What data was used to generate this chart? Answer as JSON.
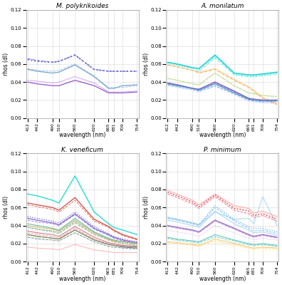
{
  "wavelengths": [
    412,
    442,
    490,
    510,
    560,
    620,
    665,
    681,
    709,
    754
  ],
  "titles": [
    "M. polykrikoides",
    "A. monilatum",
    "K. veneficum",
    "P. minimum"
  ],
  "ylabel": "rhos (dl)",
  "xlabel": "wavelength (nm)",
  "ylim": [
    0,
    0.12
  ],
  "yticks": [
    0.0,
    0.02,
    0.04,
    0.06,
    0.08,
    0.1,
    0.12
  ],
  "bg_color": "#ffffff",
  "grid_color": "#cccccc",
  "panels": {
    "M. polykrikoides": {
      "lines": [
        {
          "y": [
            0.04,
            0.038,
            0.036,
            0.036,
            0.042,
            0.036,
            0.028,
            0.028,
            0.028,
            0.029
          ],
          "color": "#8844bb",
          "ls": "solid",
          "lw": 0.9
        },
        {
          "y": [
            0.042,
            0.041,
            0.039,
            0.04,
            0.046,
            0.039,
            0.029,
            0.029,
            0.029,
            0.03
          ],
          "color": "#cc99ff",
          "ls": "solid",
          "lw": 0.7
        },
        {
          "y": [
            0.054,
            0.052,
            0.05,
            0.051,
            0.059,
            0.046,
            0.033,
            0.033,
            0.036,
            0.037
          ],
          "color": "#6699cc",
          "ls": "solid",
          "lw": 0.9
        },
        {
          "y": [
            0.055,
            0.053,
            0.052,
            0.053,
            0.06,
            0.047,
            0.034,
            0.034,
            0.034,
            0.036
          ],
          "color": "#99bbdd",
          "ls": "dashed",
          "lw": 0.7
        },
        {
          "y": [
            0.065,
            0.063,
            0.062,
            0.063,
            0.07,
            0.054,
            0.052,
            0.052,
            0.052,
            0.052
          ],
          "color": "#4444bb",
          "ls": "dotted",
          "lw": 1.3
        },
        {
          "y": [
            0.066,
            0.064,
            0.062,
            0.063,
            0.07,
            0.054,
            0.052,
            0.052,
            0.052,
            0.052
          ],
          "color": "#7777dd",
          "ls": "dashed",
          "lw": 0.9
        }
      ]
    },
    "A. monilatum": {
      "lines": [
        {
          "y": [
            0.062,
            0.06,
            0.056,
            0.055,
            0.07,
            0.05,
            0.048,
            0.048,
            0.049,
            0.051
          ],
          "color": "#00cccc",
          "ls": "solid",
          "lw": 1.1
        },
        {
          "y": [
            0.061,
            0.059,
            0.055,
            0.054,
            0.069,
            0.049,
            0.047,
            0.047,
            0.048,
            0.05
          ],
          "color": "#33dddd",
          "ls": "dotted",
          "lw": 1.1
        },
        {
          "y": [
            0.059,
            0.057,
            0.053,
            0.052,
            0.067,
            0.048,
            0.046,
            0.046,
            0.047,
            0.049
          ],
          "color": "#66eedd",
          "ls": "dashed",
          "lw": 0.9
        },
        {
          "y": [
            0.059,
            0.057,
            0.053,
            0.05,
            0.054,
            0.042,
            0.034,
            0.03,
            0.022,
            0.015
          ],
          "color": "#ffaa55",
          "ls": "dashed",
          "lw": 0.9
        },
        {
          "y": [
            0.059,
            0.057,
            0.053,
            0.051,
            0.055,
            0.043,
            0.035,
            0.031,
            0.023,
            0.016
          ],
          "color": "#ffcc88",
          "ls": "solid",
          "lw": 0.7
        },
        {
          "y": [
            0.044,
            0.042,
            0.038,
            0.037,
            0.05,
            0.036,
            0.028,
            0.027,
            0.025,
            0.024
          ],
          "color": "#99cc55",
          "ls": "dotted",
          "lw": 0.9
        },
        {
          "y": [
            0.044,
            0.042,
            0.038,
            0.037,
            0.05,
            0.036,
            0.028,
            0.027,
            0.025,
            0.024
          ],
          "color": "#bbdd77",
          "ls": "dashed",
          "lw": 0.7
        },
        {
          "y": [
            0.039,
            0.037,
            0.033,
            0.032,
            0.04,
            0.03,
            0.022,
            0.021,
            0.02,
            0.02
          ],
          "color": "#6655aa",
          "ls": "solid",
          "lw": 1.1
        },
        {
          "y": [
            0.039,
            0.037,
            0.033,
            0.032,
            0.039,
            0.029,
            0.022,
            0.021,
            0.02,
            0.02
          ],
          "color": "#8877cc",
          "ls": "dashed",
          "lw": 0.7
        },
        {
          "y": [
            0.038,
            0.036,
            0.033,
            0.031,
            0.038,
            0.028,
            0.021,
            0.02,
            0.019,
            0.019
          ],
          "color": "#4488cc",
          "ls": "solid",
          "lw": 0.9
        },
        {
          "y": [
            0.037,
            0.035,
            0.032,
            0.03,
            0.036,
            0.027,
            0.02,
            0.019,
            0.018,
            0.018
          ],
          "color": "#6699dd",
          "ls": "dashed",
          "lw": 0.7
        },
        {
          "y": [
            0.036,
            0.034,
            0.031,
            0.029,
            0.035,
            0.026,
            0.019,
            0.018,
            0.017,
            0.016
          ],
          "color": "#88aaee",
          "ls": "dotted",
          "lw": 0.7
        }
      ]
    },
    "K. veneficum": {
      "lines": [
        {
          "y": [
            0.075,
            0.073,
            0.068,
            0.065,
            0.095,
            0.055,
            0.042,
            0.038,
            0.035,
            0.03
          ],
          "color": "#22ddcc",
          "ls": "solid",
          "lw": 1.1
        },
        {
          "y": [
            0.065,
            0.063,
            0.06,
            0.057,
            0.071,
            0.047,
            0.039,
            0.035,
            0.03,
            0.025
          ],
          "color": "#cc3333",
          "ls": "solid",
          "lw": 0.9
        },
        {
          "y": [
            0.063,
            0.061,
            0.058,
            0.055,
            0.068,
            0.045,
            0.038,
            0.034,
            0.029,
            0.024
          ],
          "color": "#dd6644",
          "ls": "dashed",
          "lw": 0.7
        },
        {
          "y": [
            0.05,
            0.048,
            0.045,
            0.043,
            0.055,
            0.039,
            0.031,
            0.028,
            0.025,
            0.022
          ],
          "color": "#5555bb",
          "ls": "dotted",
          "lw": 0.9
        },
        {
          "y": [
            0.048,
            0.046,
            0.043,
            0.041,
            0.053,
            0.037,
            0.03,
            0.027,
            0.024,
            0.021
          ],
          "color": "#7755cc",
          "ls": "solid",
          "lw": 0.9
        },
        {
          "y": [
            0.046,
            0.044,
            0.042,
            0.04,
            0.052,
            0.036,
            0.029,
            0.026,
            0.023,
            0.02
          ],
          "color": "#9977dd",
          "ls": "dashed",
          "lw": 0.7
        },
        {
          "y": [
            0.042,
            0.04,
            0.037,
            0.035,
            0.048,
            0.033,
            0.026,
            0.024,
            0.022,
            0.02
          ],
          "color": "#44aa88",
          "ls": "solid",
          "lw": 0.7
        },
        {
          "y": [
            0.038,
            0.036,
            0.033,
            0.031,
            0.043,
            0.03,
            0.024,
            0.022,
            0.02,
            0.018
          ],
          "color": "#66bb99",
          "ls": "dashed",
          "lw": 0.7
        },
        {
          "y": [
            0.04,
            0.038,
            0.036,
            0.034,
            0.046,
            0.032,
            0.025,
            0.023,
            0.022,
            0.02
          ],
          "color": "#ccaa44",
          "ls": "solid",
          "lw": 0.7
        },
        {
          "y": [
            0.038,
            0.036,
            0.034,
            0.032,
            0.044,
            0.03,
            0.024,
            0.022,
            0.02,
            0.018
          ],
          "color": "#ddbb66",
          "ls": "dashed",
          "lw": 0.7
        },
        {
          "y": [
            0.034,
            0.032,
            0.03,
            0.028,
            0.039,
            0.027,
            0.021,
            0.02,
            0.018,
            0.017
          ],
          "color": "#cc5566",
          "ls": "solid",
          "lw": 0.7
        },
        {
          "y": [
            0.032,
            0.03,
            0.028,
            0.026,
            0.037,
            0.025,
            0.02,
            0.019,
            0.017,
            0.016
          ],
          "color": "#dd8899",
          "ls": "dashed",
          "lw": 0.7
        },
        {
          "y": [
            0.03,
            0.028,
            0.026,
            0.025,
            0.035,
            0.024,
            0.019,
            0.018,
            0.016,
            0.015
          ],
          "color": "#4466aa",
          "ls": "solid",
          "lw": 0.7
        },
        {
          "y": [
            0.027,
            0.025,
            0.024,
            0.023,
            0.032,
            0.022,
            0.017,
            0.016,
            0.015,
            0.014
          ],
          "color": "#6688bb",
          "ls": "dashed",
          "lw": 0.7
        },
        {
          "y": [
            0.03,
            0.028,
            0.026,
            0.025,
            0.035,
            0.024,
            0.019,
            0.018,
            0.017,
            0.016
          ],
          "color": "#888833",
          "ls": "solid",
          "lw": 0.7
        },
        {
          "y": [
            0.028,
            0.026,
            0.024,
            0.023,
            0.032,
            0.022,
            0.017,
            0.016,
            0.015,
            0.014
          ],
          "color": "#aaaa44",
          "ls": "dotted",
          "lw": 0.7
        },
        {
          "y": [
            0.038,
            0.036,
            0.034,
            0.033,
            0.045,
            0.031,
            0.025,
            0.023,
            0.021,
            0.019
          ],
          "color": "#55aacc",
          "ls": "dotted",
          "lw": 0.9
        },
        {
          "y": [
            0.016,
            0.015,
            0.014,
            0.013,
            0.019,
            0.013,
            0.011,
            0.01,
            0.01,
            0.01
          ],
          "color": "#ffaaaa",
          "ls": "solid",
          "lw": 0.7
        }
      ]
    },
    "P. minimum": {
      "lines": [
        {
          "y": [
            0.049,
            0.047,
            0.043,
            0.041,
            0.055,
            0.047,
            0.048,
            0.042,
            0.072,
            0.04
          ],
          "color": "#aaddee",
          "ls": "solid",
          "lw": 0.9
        },
        {
          "y": [
            0.079,
            0.075,
            0.068,
            0.063,
            0.075,
            0.062,
            0.059,
            0.054,
            0.056,
            0.05
          ],
          "color": "#ffaaaa",
          "ls": "solid",
          "lw": 0.9
        },
        {
          "y": [
            0.077,
            0.073,
            0.066,
            0.061,
            0.073,
            0.06,
            0.057,
            0.052,
            0.054,
            0.048
          ],
          "color": "#ffccaa",
          "ls": "dashed",
          "lw": 0.7
        },
        {
          "y": [
            0.049,
            0.047,
            0.043,
            0.041,
            0.062,
            0.047,
            0.039,
            0.037,
            0.037,
            0.033
          ],
          "color": "#55aadd",
          "ls": "dotted",
          "lw": 0.9
        },
        {
          "y": [
            0.048,
            0.046,
            0.042,
            0.04,
            0.06,
            0.045,
            0.037,
            0.034,
            0.035,
            0.031
          ],
          "color": "#77bbee",
          "ls": "dashed",
          "lw": 0.7
        },
        {
          "y": [
            0.046,
            0.044,
            0.04,
            0.038,
            0.056,
            0.042,
            0.035,
            0.032,
            0.033,
            0.029
          ],
          "color": "#99ccff",
          "ls": "solid",
          "lw": 0.7
        },
        {
          "y": [
            0.077,
            0.073,
            0.066,
            0.061,
            0.074,
            0.059,
            0.056,
            0.051,
            0.053,
            0.047
          ],
          "color": "#cc3355",
          "ls": "dotted",
          "lw": 1.1
        },
        {
          "y": [
            0.075,
            0.071,
            0.064,
            0.059,
            0.072,
            0.057,
            0.053,
            0.049,
            0.051,
            0.045
          ],
          "color": "#ee6688",
          "ls": "dashed",
          "lw": 0.7
        },
        {
          "y": [
            0.04,
            0.038,
            0.035,
            0.033,
            0.046,
            0.037,
            0.03,
            0.028,
            0.03,
            0.027
          ],
          "color": "#9966bb",
          "ls": "solid",
          "lw": 1.1
        },
        {
          "y": [
            0.039,
            0.037,
            0.034,
            0.032,
            0.045,
            0.036,
            0.029,
            0.027,
            0.029,
            0.026
          ],
          "color": "#bb88dd",
          "ls": "dashed",
          "lw": 0.7
        },
        {
          "y": [
            0.035,
            0.033,
            0.03,
            0.028,
            0.04,
            0.032,
            0.026,
            0.024,
            0.026,
            0.024
          ],
          "color": "#dd99ee",
          "ls": "dotted",
          "lw": 0.7
        },
        {
          "y": [
            0.027,
            0.025,
            0.023,
            0.022,
            0.03,
            0.024,
            0.02,
            0.019,
            0.02,
            0.018
          ],
          "color": "#44bbaa",
          "ls": "solid",
          "lw": 0.7
        },
        {
          "y": [
            0.026,
            0.024,
            0.022,
            0.021,
            0.028,
            0.023,
            0.019,
            0.018,
            0.019,
            0.017
          ],
          "color": "#66ccbb",
          "ls": "dashed",
          "lw": 0.7
        },
        {
          "y": [
            0.025,
            0.023,
            0.021,
            0.02,
            0.027,
            0.021,
            0.018,
            0.017,
            0.018,
            0.016
          ],
          "color": "#88ddcc",
          "ls": "dotted",
          "lw": 0.7
        },
        {
          "y": [
            0.022,
            0.021,
            0.019,
            0.018,
            0.025,
            0.02,
            0.016,
            0.015,
            0.016,
            0.015
          ],
          "color": "#ffbb55",
          "ls": "solid",
          "lw": 0.7
        },
        {
          "y": [
            0.021,
            0.02,
            0.018,
            0.017,
            0.023,
            0.018,
            0.015,
            0.014,
            0.015,
            0.014
          ],
          "color": "#ffdd77",
          "ls": "dashed",
          "lw": 0.7
        },
        {
          "y": [
            0.016,
            0.015,
            0.014,
            0.013,
            0.02,
            0.015,
            0.012,
            0.012,
            0.012,
            0.012
          ],
          "color": "#ffeeaa",
          "ls": "dotted",
          "lw": 0.7
        }
      ]
    }
  }
}
